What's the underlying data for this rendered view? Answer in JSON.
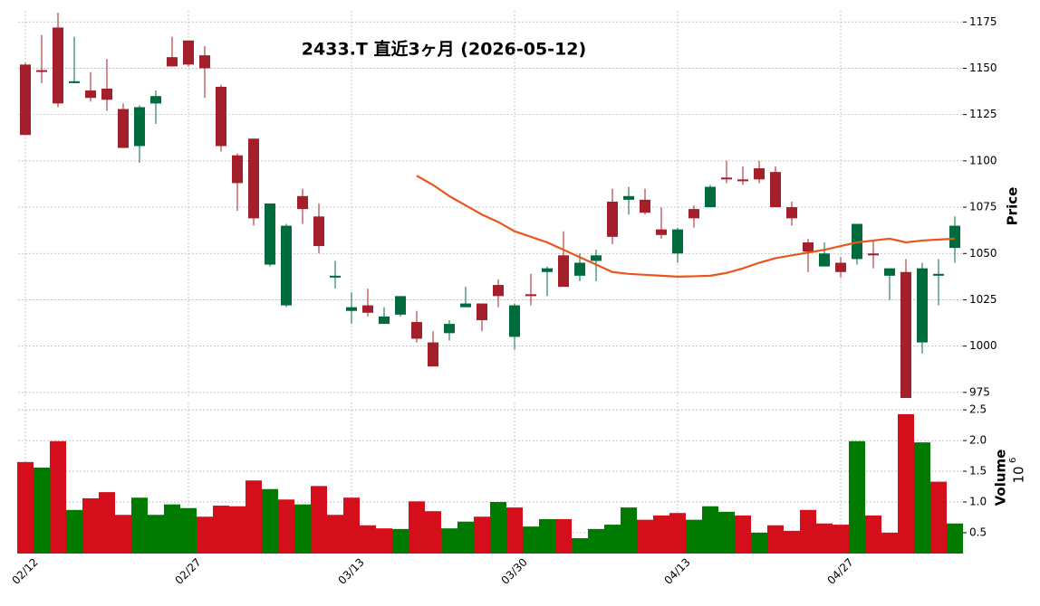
{
  "chart_data": {
    "type": "candlestick",
    "title": "2433.T  直近3ヶ月  (2026-05-12)",
    "categories": [
      "02/12",
      null,
      null,
      null,
      null,
      null,
      null,
      null,
      null,
      null,
      "02/27",
      null,
      null,
      null,
      null,
      null,
      null,
      null,
      null,
      null,
      "03/13",
      null,
      null,
      null,
      null,
      null,
      null,
      null,
      null,
      null,
      "03/30",
      null,
      null,
      null,
      null,
      null,
      null,
      null,
      null,
      null,
      "04/13",
      null,
      null,
      null,
      null,
      null,
      null,
      null,
      null,
      null,
      "04/27",
      null,
      null,
      null,
      null,
      null,
      null,
      null
    ],
    "open": [
      1152,
      1149,
      1172,
      1142,
      1138,
      1139,
      1128,
      1108,
      1131,
      1156,
      1165,
      1157,
      1140,
      1103,
      1112,
      1044,
      1022,
      1081,
      1070,
      1037,
      1019,
      1022,
      1012,
      1017,
      1013,
      1002,
      1007,
      1021,
      1023,
      1033,
      1005,
      1028,
      1040,
      1049,
      1038,
      1046,
      1078,
      1079,
      1079,
      1063,
      1050,
      1074,
      1075,
      1091,
      1090,
      1096,
      1094,
      1075,
      1056,
      1043,
      1045,
      1047,
      1050,
      1038,
      1040,
      1002,
      1038,
      1053
    ],
    "high": [
      1153,
      1168,
      1180,
      1167,
      1148,
      1155,
      1131,
      1130,
      1138,
      1167,
      1165,
      1162,
      1141,
      1104,
      1112,
      1077,
      1066,
      1085,
      1077,
      1046,
      1029,
      1031,
      1021,
      1027,
      1019,
      1008,
      1014,
      1032,
      1023,
      1036,
      1023,
      1039,
      1043,
      1062,
      1050,
      1052,
      1085,
      1086,
      1085,
      1075,
      1064,
      1076,
      1087,
      1100,
      1097,
      1100,
      1097,
      1078,
      1058,
      1056,
      1048,
      1066,
      1057,
      1042,
      1047,
      1045,
      1047,
      1070
    ],
    "low": [
      1114,
      1142,
      1129,
      1142,
      1132,
      1127,
      1107,
      1099,
      1120,
      1151,
      1151,
      1134,
      1105,
      1073,
      1065,
      1043,
      1021,
      1066,
      1050,
      1031,
      1012,
      1016,
      1012,
      1016,
      1002,
      989,
      1003,
      1021,
      1008,
      1021,
      998,
      1022,
      1027,
      1032,
      1035,
      1035,
      1055,
      1071,
      1071,
      1058,
      1045,
      1064,
      1075,
      1088,
      1087,
      1088,
      1075,
      1065,
      1040,
      1043,
      1037,
      1044,
      1042,
      1025,
      972,
      996,
      1022,
      1045
    ],
    "close": [
      1114,
      1148,
      1131,
      1143,
      1134,
      1133,
      1107,
      1129,
      1135,
      1151,
      1152,
      1150,
      1108,
      1088,
      1069,
      1077,
      1065,
      1074,
      1054,
      1038,
      1021,
      1018,
      1016,
      1027,
      1004,
      989,
      1012,
      1023,
      1014,
      1027,
      1022,
      1027,
      1042,
      1032,
      1045,
      1049,
      1059,
      1081,
      1072,
      1060,
      1063,
      1069,
      1086,
      1090,
      1089,
      1090,
      1075,
      1069,
      1051,
      1050,
      1040,
      1066,
      1049,
      1042,
      972,
      1042,
      1039,
      1065
    ],
    "up_color": "#006b3c",
    "down_color": "#a31f2a",
    "ma": {
      "color": "#e8561c",
      "values": [
        null,
        null,
        null,
        null,
        null,
        null,
        null,
        null,
        null,
        null,
        null,
        null,
        null,
        null,
        null,
        null,
        null,
        null,
        null,
        null,
        null,
        null,
        null,
        null,
        1092,
        1087,
        1081,
        1076,
        1071,
        1067,
        1062,
        1059,
        1056,
        1052,
        1048,
        1044,
        1040,
        1039,
        1038.5,
        1038,
        1037.5,
        1037.7,
        1038,
        1039.5,
        1042,
        1045,
        1047.5,
        1049,
        1050.5,
        1052,
        1054,
        1056,
        1057,
        1058,
        1056,
        1057,
        1057.5,
        1058
      ]
    },
    "ylabel": "Price",
    "ylim": [
      972,
      1181
    ],
    "yticks": [
      975,
      1000,
      1025,
      1050,
      1075,
      1100,
      1125,
      1150,
      1175
    ],
    "volume": {
      "label": "Volume",
      "multiplier": {
        "base": "10",
        "exponent": "6"
      },
      "values": [
        1.65,
        1.56,
        1.99,
        0.87,
        1.06,
        1.16,
        0.79,
        1.07,
        0.79,
        0.96,
        0.9,
        0.76,
        0.94,
        0.93,
        1.35,
        1.21,
        1.04,
        0.96,
        1.26,
        0.79,
        1.07,
        0.62,
        0.57,
        0.56,
        1.01,
        0.85,
        0.57,
        0.68,
        0.76,
        1.0,
        0.91,
        0.6,
        0.72,
        0.72,
        0.41,
        0.56,
        0.63,
        0.91,
        0.71,
        0.78,
        0.82,
        0.71,
        0.93,
        0.84,
        0.78,
        0.5,
        0.62,
        0.53,
        0.87,
        0.65,
        0.63,
        1.99,
        0.78,
        0.5,
        2.43,
        1.97,
        1.33,
        0.65
      ],
      "colors": [
        "#d40f1b",
        "#007a00",
        "#d40f1b",
        "#007a00",
        "#d40f1b",
        "#d40f1b",
        "#d40f1b",
        "#007a00",
        "#007a00",
        "#007a00",
        "#007a00",
        "#d40f1b",
        "#d40f1b",
        "#d40f1b",
        "#d40f1b",
        "#007a00",
        "#d40f1b",
        "#007a00",
        "#d40f1b",
        "#d40f1b",
        "#d40f1b",
        "#d40f1b",
        "#d40f1b",
        "#007a00",
        "#d40f1b",
        "#d40f1b",
        "#007a00",
        "#007a00",
        "#d40f1b",
        "#007a00",
        "#d40f1b",
        "#007a00",
        "#007a00",
        "#d40f1b",
        "#007a00",
        "#007a00",
        "#007a00",
        "#007a00",
        "#d40f1b",
        "#d40f1b",
        "#d40f1b",
        "#007a00",
        "#007a00",
        "#007a00",
        "#d40f1b",
        "#007a00",
        "#d40f1b",
        "#d40f1b",
        "#d40f1b",
        "#d40f1b",
        "#d40f1b",
        "#007a00",
        "#d40f1b",
        "#d40f1b",
        "#d40f1b",
        "#007a00",
        "#d40f1b",
        "#007a00"
      ],
      "ylim": [
        0.16,
        2.62
      ],
      "yticks": [
        0.5,
        {
          "value": 1,
          "label": "1.0"
        },
        1.5,
        {
          "value": 2,
          "label": "2.0"
        },
        2.5
      ]
    },
    "grid": true
  }
}
